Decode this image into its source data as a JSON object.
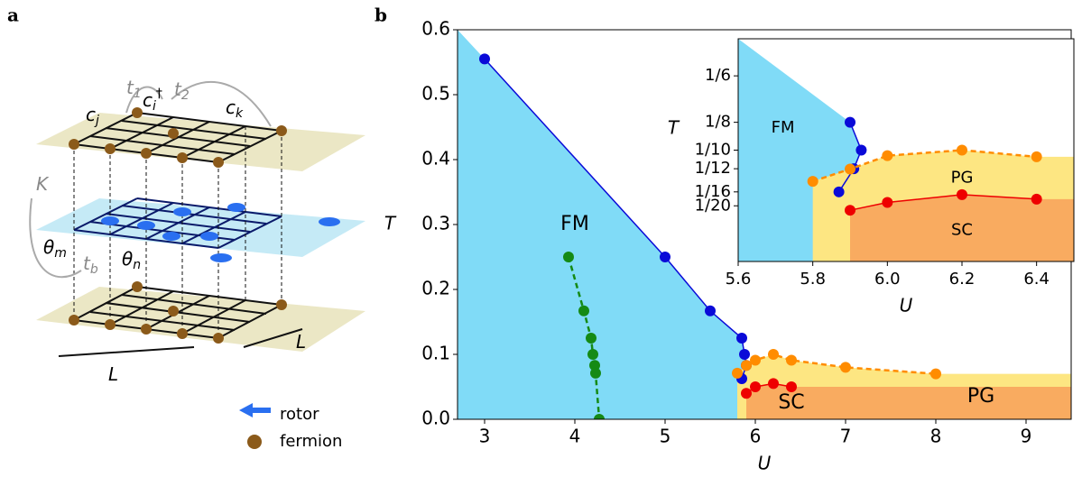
{
  "panel_labels": [
    "a",
    "b"
  ],
  "diagram": {
    "cj": {
      "base": "c",
      "sub": "j"
    },
    "ci": {
      "base": "c",
      "sub": "i",
      "sup": "†"
    },
    "ck": {
      "base": "c",
      "sub": "k"
    },
    "t1": {
      "base": "t",
      "sub": "1"
    },
    "t2": {
      "base": "t",
      "sub": "2"
    },
    "K": {
      "base": "K"
    },
    "thm": {
      "base": "θ",
      "sub": "m"
    },
    "thn": {
      "base": "θ",
      "sub": "n"
    },
    "tb": {
      "base": "t",
      "sub": "b"
    },
    "L1": {
      "base": "L"
    },
    "L2": {
      "base": "L"
    },
    "legend": [
      "rotor",
      "fermion"
    ]
  },
  "chart_data": [
    {
      "type": "line",
      "xlabel": "U",
      "ylabel": "T",
      "xlim": [
        2.7,
        9.5
      ],
      "ylim": [
        0,
        0.6
      ],
      "xticks": [
        3,
        4,
        5,
        6,
        7,
        8,
        9
      ],
      "yticks": [
        {
          "value": 0,
          "label": "0.0"
        },
        0.1,
        0.2,
        0.3,
        0.4,
        0.5,
        0.6
      ],
      "annotations": [
        "FM",
        "SC",
        "PG"
      ],
      "series": [
        {
          "color": "#0a0ad8",
          "fill": "#80dbf7",
          "fill_to": "left",
          "dashed": false,
          "x": [
            3,
            5,
            5.5,
            5.85,
            5.88,
            5.9,
            5.85
          ],
          "values": [
            0.555,
            0.25,
            0.167,
            0.125,
            0.1,
            0.083,
            0.0625
          ]
        },
        {
          "color": "#ff8c00",
          "fill": "#fde682",
          "fill_to": "below",
          "dashed": true,
          "x": [
            5.8,
            5.9,
            6.0,
            6.2,
            6.4,
            7,
            8
          ],
          "values": [
            0.071,
            0.083,
            0.091,
            0.1,
            0.091,
            0.08,
            0.07
          ]
        },
        {
          "color": "#ee0000",
          "fill": "#f9ab60",
          "fill_to": "below",
          "dashed": false,
          "x": [
            5.9,
            6.0,
            6.2,
            6.4
          ],
          "values": [
            0.04,
            0.05,
            0.055,
            0.05
          ]
        },
        {
          "color": "#158a15",
          "dashed": true,
          "x": [
            3.93,
            4.1,
            4.18,
            4.2,
            4.22,
            4.23,
            4.27
          ],
          "values": [
            0.25,
            0.167,
            0.125,
            0.1,
            0.083,
            0.071,
            0
          ]
        }
      ]
    },
    {
      "type": "line",
      "xlabel": "U",
      "ylabel": "T",
      "xlim": [
        5.6,
        6.5
      ],
      "ylim": [
        0,
        0.2
      ],
      "xticks": [
        5.6,
        5.8,
        {
          "value": 6,
          "label": "6.0"
        },
        6.2,
        6.4
      ],
      "yticks": [
        {
          "value": 0.1667,
          "label": "1/6"
        },
        {
          "value": 0.125,
          "label": "1/8"
        },
        {
          "value": 0.1,
          "label": "1/10"
        },
        {
          "value": 0.0833,
          "label": "1/12"
        },
        {
          "value": 0.0625,
          "label": "1/16"
        },
        {
          "value": 0.05,
          "label": "1/20"
        }
      ],
      "annotations": [
        "FM",
        "PG",
        "SC"
      ],
      "series": [
        {
          "color": "#0a0ad8",
          "fill": "#80dbf7",
          "fill_to": "left",
          "dashed": false,
          "x": [
            5.9,
            5.93,
            5.91,
            5.87
          ],
          "values": [
            0.125,
            0.1,
            0.0833,
            0.0625
          ]
        },
        {
          "color": "#ff8c00",
          "fill": "#fde682",
          "fill_to": "below",
          "dashed": true,
          "x": [
            5.8,
            5.9,
            6.0,
            6.2,
            6.4
          ],
          "values": [
            0.072,
            0.083,
            0.095,
            0.1,
            0.094
          ]
        },
        {
          "color": "#ee0000",
          "fill": "#f9ab60",
          "fill_to": "below",
          "dashed": false,
          "x": [
            5.9,
            6.0,
            6.2,
            6.4
          ],
          "values": [
            0.046,
            0.053,
            0.06,
            0.056
          ]
        }
      ]
    }
  ]
}
